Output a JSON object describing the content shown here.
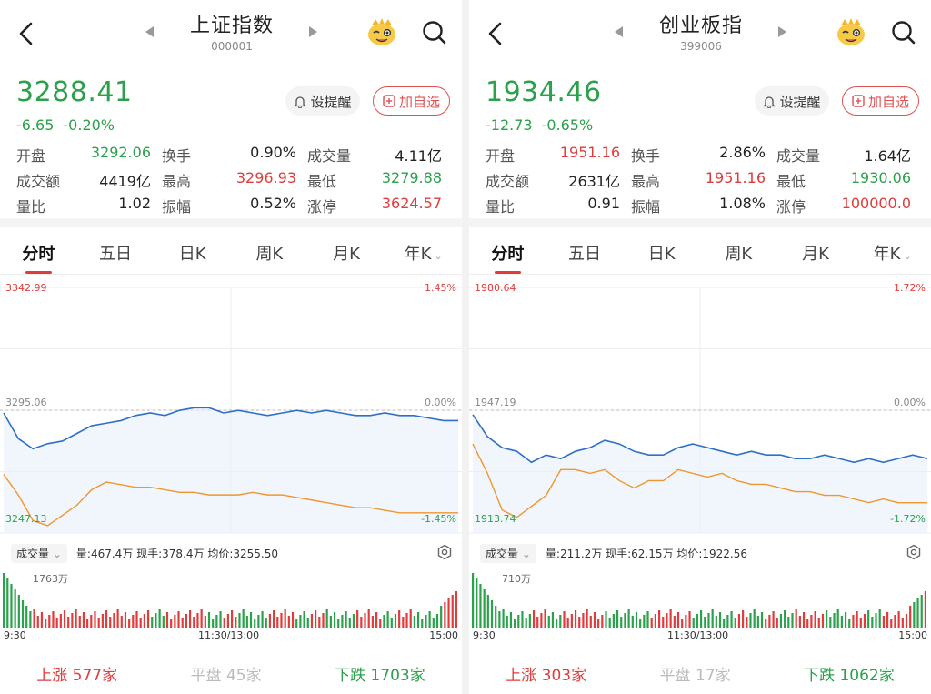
{
  "colors": {
    "up": "#e03c3c",
    "down": "#2ba14b",
    "price_line": "#2f6fc7",
    "avg_line": "#f0962e",
    "flat": "#bbbbbb"
  },
  "icons": {
    "back": "chevron-left-icon",
    "prev": "triangle-left-icon",
    "next": "triangle-right-icon",
    "mascot": "mascot-face-icon",
    "search": "search-icon",
    "bell": "bell-icon",
    "add": "plus-square-icon",
    "settings": "gear-icon",
    "dropdown": "chevron-down-icon"
  },
  "panels": [
    {
      "title": "上证指数",
      "code": "000001",
      "price": "3288.41",
      "change": "-6.65",
      "change_pct": "-0.20%",
      "remind_label": "设提醒",
      "add_label": "加自选",
      "stats": [
        [
          {
            "k": "开盘",
            "v": "3292.06",
            "c": "green"
          },
          {
            "k": "换手",
            "v": "0.90%",
            "c": ""
          },
          {
            "k": "成交量",
            "v": "4.11亿",
            "c": ""
          }
        ],
        [
          {
            "k": "成交额",
            "v": "4419亿",
            "c": ""
          },
          {
            "k": "最高",
            "v": "3296.93",
            "c": "red"
          },
          {
            "k": "最低",
            "v": "3279.88",
            "c": "green"
          }
        ],
        [
          {
            "k": "量比",
            "v": "1.02",
            "c": ""
          },
          {
            "k": "振幅",
            "v": "0.52%",
            "c": ""
          },
          {
            "k": "涨停",
            "v": "3624.57",
            "c": "red"
          }
        ]
      ],
      "tabs": [
        "分时",
        "五日",
        "日K",
        "周K",
        "月K",
        "年K"
      ],
      "axis": {
        "top": "3342.99",
        "mid": "3295.06",
        "bottom": "3247.13",
        "top_pct": "1.45%",
        "mid_pct": "0.00%",
        "bottom_pct": "-1.45%"
      },
      "vol_label": "成交量",
      "vol_info": "量:467.4万  现手:378.4万  均价:3255.50",
      "vol_max": "1763万",
      "times": [
        "9:30",
        "11:30/13:00",
        "15:00"
      ],
      "breadth": {
        "up_label": "上涨",
        "up": "577家",
        "flat_label": "平盘",
        "flat": "45家",
        "down_label": "下跌",
        "down": "1703家"
      },
      "chart_data": {
        "type": "line",
        "ylim": [
          3247.13,
          3342.99
        ],
        "prev_close": 3295.06,
        "price": [
          3294,
          3284,
          3280,
          3282,
          3283,
          3286,
          3289,
          3290,
          3291,
          3293,
          3294,
          3293,
          3295,
          3296,
          3296,
          3294,
          3295,
          3294,
          3293,
          3294,
          3295,
          3294,
          3295,
          3294,
          3293,
          3293,
          3294,
          3293,
          3293,
          3292,
          3291,
          3291
        ],
        "avg": [
          3270,
          3262,
          3252,
          3250,
          3254,
          3258,
          3264,
          3267,
          3266,
          3265,
          3265,
          3264,
          3263,
          3263,
          3262,
          3262,
          3262,
          3263,
          3262,
          3262,
          3261,
          3260,
          3259,
          3258,
          3257,
          3257,
          3256,
          3255,
          3255,
          3255,
          3255,
          3255
        ]
      }
    },
    {
      "title": "创业板指",
      "code": "399006",
      "price": "1934.46",
      "change": "-12.73",
      "change_pct": "-0.65%",
      "remind_label": "设提醒",
      "add_label": "加自选",
      "stats": [
        [
          {
            "k": "开盘",
            "v": "1951.16",
            "c": "red"
          },
          {
            "k": "换手",
            "v": "2.86%",
            "c": ""
          },
          {
            "k": "成交量",
            "v": "1.64亿",
            "c": ""
          }
        ],
        [
          {
            "k": "成交额",
            "v": "2631亿",
            "c": ""
          },
          {
            "k": "最高",
            "v": "1951.16",
            "c": "red"
          },
          {
            "k": "最低",
            "v": "1930.06",
            "c": "green"
          }
        ],
        [
          {
            "k": "量比",
            "v": "0.91",
            "c": ""
          },
          {
            "k": "振幅",
            "v": "1.08%",
            "c": ""
          },
          {
            "k": "涨停",
            "v": "100000.0",
            "c": "red"
          }
        ]
      ],
      "tabs": [
        "分时",
        "五日",
        "日K",
        "周K",
        "月K",
        "年K"
      ],
      "axis": {
        "top": "1980.64",
        "mid": "1947.19",
        "bottom": "1913.74",
        "top_pct": "1.72%",
        "mid_pct": "0.00%",
        "bottom_pct": "-1.72%"
      },
      "vol_label": "成交量",
      "vol_info": "量:211.2万  现手:62.15万  均价:1922.56",
      "vol_max": "710万",
      "times": [
        "9:30",
        "11:30/13:00",
        "15:00"
      ],
      "breadth": {
        "up_label": "上涨",
        "up": "303家",
        "flat_label": "平盘",
        "flat": "17家",
        "down_label": "下跌",
        "down": "1062家"
      },
      "chart_data": {
        "type": "line",
        "ylim": [
          1913.74,
          1980.64
        ],
        "prev_close": 1947.19,
        "price": [
          1946,
          1940,
          1937,
          1936,
          1933,
          1935,
          1934,
          1936,
          1937,
          1939,
          1938,
          1936,
          1935,
          1935,
          1937,
          1938,
          1937,
          1936,
          1935,
          1936,
          1935,
          1935,
          1934,
          1934,
          1935,
          1934,
          1933,
          1934,
          1933,
          1934,
          1935,
          1934
        ],
        "avg": [
          1938,
          1930,
          1920,
          1918,
          1921,
          1924,
          1931,
          1931,
          1930,
          1931,
          1928,
          1926,
          1928,
          1928,
          1931,
          1930,
          1929,
          1930,
          1928,
          1927,
          1927,
          1926,
          1925,
          1925,
          1924,
          1924,
          1923,
          1922,
          1923,
          1922,
          1922,
          1922
        ]
      }
    }
  ]
}
